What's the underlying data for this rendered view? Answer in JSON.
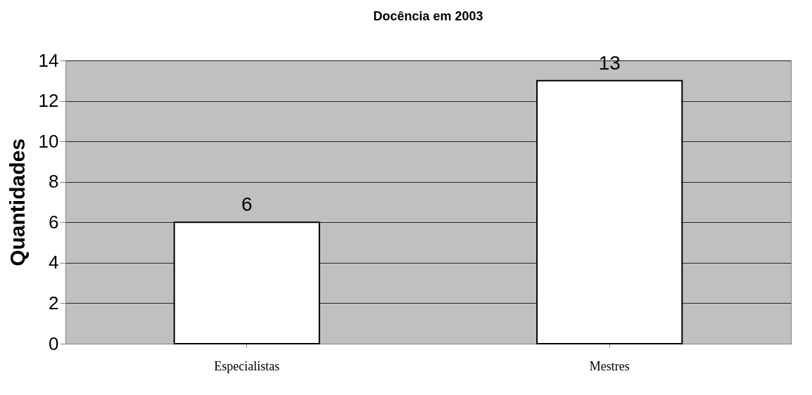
{
  "chart_data": {
    "type": "bar",
    "title": "Docência em 2003",
    "ylabel": "Quantidades",
    "categories": [
      "Especialistas",
      "Mestres"
    ],
    "values": [
      6,
      13
    ],
    "color": "#ffffff",
    "ylim": [
      0,
      14
    ],
    "yticks": [
      0,
      2,
      4,
      6,
      8,
      10,
      12,
      14
    ],
    "grid": "y",
    "data_labels": true
  }
}
